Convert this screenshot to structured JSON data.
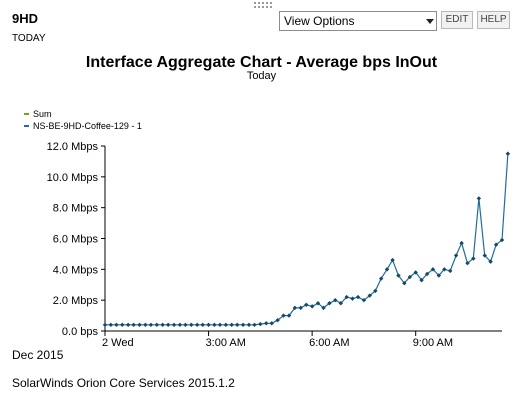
{
  "widget": {
    "title": "9HD",
    "subtitle": "TODAY"
  },
  "toolbar": {
    "view_options_label": "View Options",
    "edit_label": "EDIT",
    "help_label": "HELP"
  },
  "colors": {
    "sum": "#6aaa1e",
    "interface": "#1f6e96",
    "marker": "#14496a",
    "axis": "#000000"
  },
  "chart_data": {
    "type": "line",
    "title": "Interface Aggregate Chart - Average bps InOut",
    "subtitle": "Today",
    "x_unit": "hours",
    "x_range": [
      0,
      11.5
    ],
    "xticks": [
      {
        "x": 0,
        "label": "2 Wed"
      },
      {
        "x": 3,
        "label": "3:00 AM"
      },
      {
        "x": 6,
        "label": "6:00 AM"
      },
      {
        "x": 9,
        "label": "9:00 AM"
      }
    ],
    "y_unit": "Mbps",
    "ylim": [
      0,
      12
    ],
    "yticks": [
      {
        "value": 0,
        "label": "0.0 bps"
      },
      {
        "value": 2,
        "label": "2.0 Mbps"
      },
      {
        "value": 4,
        "label": "4.0 Mbps"
      },
      {
        "value": 6,
        "label": "6.0 Mbps"
      },
      {
        "value": 8,
        "label": "8.0 Mbps"
      },
      {
        "value": 10,
        "label": "10.0 Mbps"
      },
      {
        "value": 12,
        "label": "12.0 Mbps"
      }
    ],
    "grid": false,
    "legend_position": "top-left",
    "series": [
      {
        "name": "Sum",
        "color_key": "sum",
        "markers": false,
        "points": []
      },
      {
        "name": "NS-BE-9HD-Coffee-129 - 1",
        "color_key": "interface",
        "markers": true,
        "points": [
          [
            0.0,
            0.4
          ],
          [
            0.17,
            0.4
          ],
          [
            0.33,
            0.4
          ],
          [
            0.5,
            0.4
          ],
          [
            0.67,
            0.4
          ],
          [
            0.83,
            0.4
          ],
          [
            1.0,
            0.4
          ],
          [
            1.17,
            0.4
          ],
          [
            1.33,
            0.4
          ],
          [
            1.5,
            0.4
          ],
          [
            1.67,
            0.4
          ],
          [
            1.83,
            0.4
          ],
          [
            2.0,
            0.4
          ],
          [
            2.17,
            0.4
          ],
          [
            2.33,
            0.4
          ],
          [
            2.5,
            0.4
          ],
          [
            2.67,
            0.4
          ],
          [
            2.83,
            0.4
          ],
          [
            3.0,
            0.4
          ],
          [
            3.17,
            0.4
          ],
          [
            3.33,
            0.4
          ],
          [
            3.5,
            0.4
          ],
          [
            3.67,
            0.4
          ],
          [
            3.83,
            0.4
          ],
          [
            4.0,
            0.4
          ],
          [
            4.17,
            0.4
          ],
          [
            4.33,
            0.4
          ],
          [
            4.5,
            0.45
          ],
          [
            4.67,
            0.5
          ],
          [
            4.83,
            0.5
          ],
          [
            5.0,
            0.7
          ],
          [
            5.17,
            1.0
          ],
          [
            5.33,
            1.0
          ],
          [
            5.5,
            1.5
          ],
          [
            5.67,
            1.5
          ],
          [
            5.83,
            1.7
          ],
          [
            6.0,
            1.6
          ],
          [
            6.17,
            1.8
          ],
          [
            6.33,
            1.5
          ],
          [
            6.5,
            1.8
          ],
          [
            6.67,
            2.0
          ],
          [
            6.83,
            1.8
          ],
          [
            7.0,
            2.2
          ],
          [
            7.17,
            2.1
          ],
          [
            7.33,
            2.2
          ],
          [
            7.5,
            2.0
          ],
          [
            7.67,
            2.3
          ],
          [
            7.83,
            2.6
          ],
          [
            8.0,
            3.4
          ],
          [
            8.17,
            4.0
          ],
          [
            8.33,
            4.6
          ],
          [
            8.5,
            3.6
          ],
          [
            8.67,
            3.1
          ],
          [
            8.83,
            3.5
          ],
          [
            9.0,
            3.8
          ],
          [
            9.17,
            3.3
          ],
          [
            9.33,
            3.7
          ],
          [
            9.5,
            4.0
          ],
          [
            9.67,
            3.6
          ],
          [
            9.83,
            4.0
          ],
          [
            10.0,
            3.9
          ],
          [
            10.17,
            4.9
          ],
          [
            10.33,
            5.7
          ],
          [
            10.5,
            4.4
          ],
          [
            10.67,
            4.7
          ],
          [
            10.83,
            8.6
          ],
          [
            11.0,
            4.9
          ],
          [
            11.17,
            4.5
          ],
          [
            11.33,
            5.6
          ],
          [
            11.5,
            5.9
          ],
          [
            11.67,
            11.5
          ]
        ]
      }
    ]
  },
  "chart_footer": {
    "date": "Dec 2015"
  },
  "footer": {
    "text": "SolarWinds Orion Core Services 2015.1.2"
  }
}
